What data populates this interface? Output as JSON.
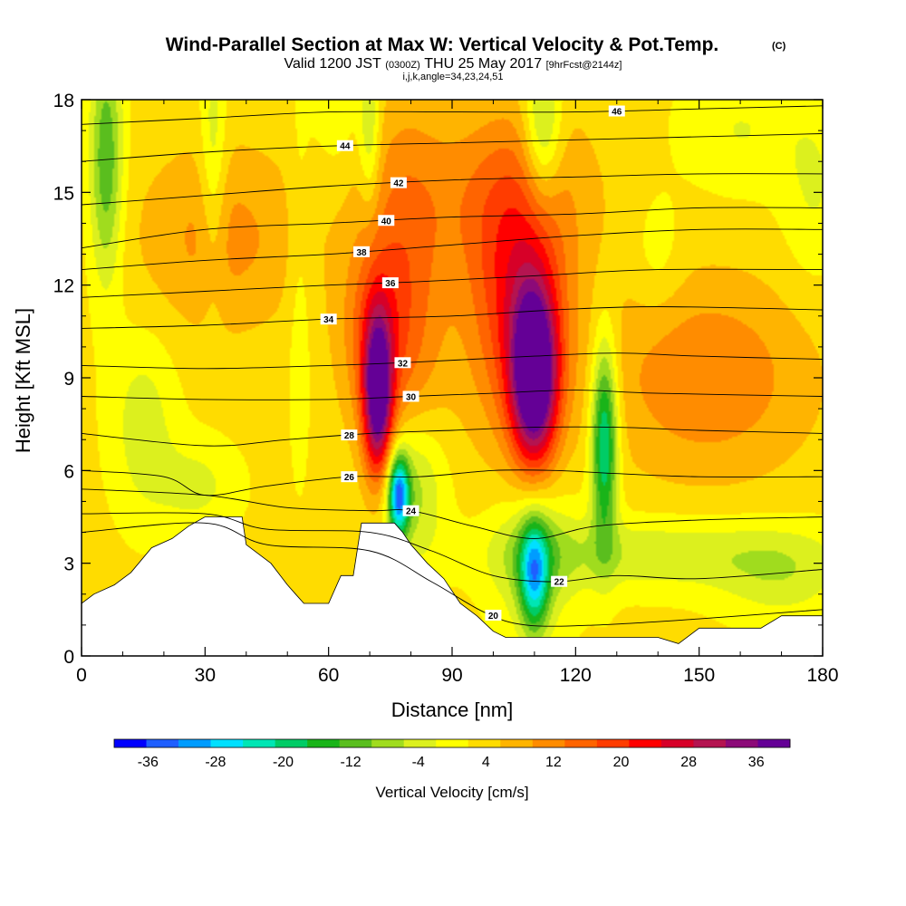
{
  "chart_data": {
    "type": "heatmap",
    "title": "Wind-Parallel Section at Max W: Vertical Velocity & Pot.Temp.",
    "title_mark": "(C)",
    "subtitle_valid": "Valid 1200 JST",
    "subtitle_utc": "(0300Z)",
    "subtitle_date": "THU 25 May 2017",
    "subtitle_fcst": "[9hrFcst@2144z]",
    "subtitle_indices": "i,j,k,angle=34,23,24,51",
    "xlabel": "Distance [nm]",
    "ylabel": "Height [Kft MSL]",
    "xlim": [
      0,
      180
    ],
    "ylim": [
      0,
      18
    ],
    "xticks": [
      "0",
      "30",
      "60",
      "90",
      "120",
      "150",
      "180"
    ],
    "yticks": [
      "0",
      "3",
      "6",
      "9",
      "12",
      "15",
      "18"
    ],
    "colorbar": {
      "title": "Vertical Velocity [cm/s]",
      "labels": [
        "-36",
        "-28",
        "-20",
        "-12",
        "-4",
        "4",
        "12",
        "20",
        "28",
        "36"
      ],
      "range": [
        -40,
        40
      ],
      "colors": [
        "#0000ff",
        "#1f5fff",
        "#009cff",
        "#00e0ff",
        "#00e6b4",
        "#00cc66",
        "#19b419",
        "#5abe1e",
        "#a0dc1e",
        "#dcf01e",
        "#ffff00",
        "#ffdc00",
        "#ffb400",
        "#ff8c00",
        "#ff6400",
        "#ff3c00",
        "#ff0000",
        "#d70028",
        "#b41450",
        "#8c0a78",
        "#640096"
      ]
    },
    "background_w": 3,
    "updraft_cores": [
      {
        "x": 72,
        "z": 8.4,
        "w": 36,
        "rx": 3.5,
        "rz": 2.6
      },
      {
        "x": 110,
        "z": 9.0,
        "w": 40,
        "rx": 5.5,
        "rz": 2.8
      },
      {
        "x": 106,
        "z": 11.5,
        "w": 18,
        "rx": 12,
        "rz": 4.5
      },
      {
        "x": 78,
        "z": 11.0,
        "w": 12,
        "rx": 10,
        "rz": 6
      },
      {
        "x": 152,
        "z": 9.0,
        "w": 10,
        "rx": 25,
        "rz": 3.2
      },
      {
        "x": 34,
        "z": 13.5,
        "w": 8,
        "rx": 20,
        "rz": 3
      },
      {
        "x": 100,
        "z": 15.0,
        "w": 7,
        "rx": 25,
        "rz": 3
      },
      {
        "x": 70,
        "z": 10.5,
        "w": 8,
        "rx": 8,
        "rz": 3
      }
    ],
    "downdraft_cores": [
      {
        "x": 77,
        "z": 5.2,
        "w": -32,
        "rx": 2.5,
        "rz": 1.3
      },
      {
        "x": 80,
        "z": 5.5,
        "w": -14,
        "rx": 8,
        "rz": 2.5
      },
      {
        "x": 127,
        "z": 7.0,
        "w": -26,
        "rx": 3.2,
        "rz": 3.2
      },
      {
        "x": 110,
        "z": 2.6,
        "w": -24,
        "rx": 3.5,
        "rz": 1.8
      },
      {
        "x": 110,
        "z": 3.2,
        "w": -10,
        "rx": 10,
        "rz": 2.5
      },
      {
        "x": 6,
        "z": 16.0,
        "w": -16,
        "rx": 4,
        "rz": 4
      },
      {
        "x": 112,
        "z": 17.0,
        "w": -14,
        "rx": 4.5,
        "rz": 2.5
      },
      {
        "x": 32,
        "z": 16.0,
        "w": -8,
        "rx": 3,
        "rz": 4
      },
      {
        "x": 70,
        "z": 17.0,
        "w": -10,
        "rx": 2.5,
        "rz": 2.5
      },
      {
        "x": 15,
        "z": 7.5,
        "w": -7,
        "rx": 8,
        "rz": 3
      },
      {
        "x": 28,
        "z": 5.5,
        "w": -6,
        "rx": 10,
        "rz": 1.5
      },
      {
        "x": 140,
        "z": 3.3,
        "w": -8,
        "rx": 40,
        "rz": 1.2
      },
      {
        "x": 170,
        "z": 2.5,
        "w": -6,
        "rx": 15,
        "rz": 1.5
      },
      {
        "x": 178,
        "z": 15.0,
        "w": -5,
        "rx": 8,
        "rz": 3
      },
      {
        "x": 160,
        "z": 17.0,
        "w": -5,
        "rx": 15,
        "rz": 2
      },
      {
        "x": 53,
        "z": 12.0,
        "w": -4,
        "rx": 3,
        "rz": 6
      },
      {
        "x": 62,
        "z": 17.5,
        "w": -4,
        "rx": 6,
        "rz": 2
      },
      {
        "x": 140,
        "z": 13.0,
        "w": -4,
        "rx": 6,
        "rz": 2
      }
    ],
    "terrain": [
      {
        "x": 0,
        "z": 1.7
      },
      {
        "x": 3,
        "z": 2.0
      },
      {
        "x": 8,
        "z": 2.3
      },
      {
        "x": 12,
        "z": 2.7
      },
      {
        "x": 17,
        "z": 3.5
      },
      {
        "x": 22,
        "z": 3.8
      },
      {
        "x": 26,
        "z": 4.2
      },
      {
        "x": 30,
        "z": 4.5
      },
      {
        "x": 39,
        "z": 4.5
      },
      {
        "x": 40,
        "z": 3.6
      },
      {
        "x": 46,
        "z": 3.0
      },
      {
        "x": 50,
        "z": 2.3
      },
      {
        "x": 52,
        "z": 2.0
      },
      {
        "x": 54,
        "z": 1.7
      },
      {
        "x": 60,
        "z": 1.7
      },
      {
        "x": 63,
        "z": 2.6
      },
      {
        "x": 66,
        "z": 2.6
      },
      {
        "x": 68,
        "z": 4.3
      },
      {
        "x": 76,
        "z": 4.3
      },
      {
        "x": 78,
        "z": 4.0
      },
      {
        "x": 80,
        "z": 3.6
      },
      {
        "x": 84,
        "z": 3.0
      },
      {
        "x": 88,
        "z": 2.5
      },
      {
        "x": 92,
        "z": 1.7
      },
      {
        "x": 96,
        "z": 1.3
      },
      {
        "x": 100,
        "z": 0.8
      },
      {
        "x": 103,
        "z": 0.6
      },
      {
        "x": 110,
        "z": 0.6
      },
      {
        "x": 130,
        "z": 0.6
      },
      {
        "x": 140,
        "z": 0.6
      },
      {
        "x": 145,
        "z": 0.4
      },
      {
        "x": 150,
        "z": 0.9
      },
      {
        "x": 155,
        "z": 0.9
      },
      {
        "x": 165,
        "z": 0.9
      },
      {
        "x": 170,
        "z": 1.3
      },
      {
        "x": 180,
        "z": 1.3
      }
    ],
    "isentropes": [
      {
        "value": 20,
        "labeled": true,
        "points": [
          [
            0,
            4.0
          ],
          [
            30,
            4.3
          ],
          [
            45,
            3.6
          ],
          [
            70,
            3.4
          ],
          [
            85,
            2.4
          ],
          [
            98,
            1.4
          ],
          [
            108,
            1.0
          ],
          [
            125,
            1.0
          ],
          [
            150,
            1.2
          ],
          [
            180,
            1.5
          ]
        ],
        "label_x": 100
      },
      {
        "value": 22,
        "labeled": true,
        "points": [
          [
            0,
            4.6
          ],
          [
            30,
            4.6
          ],
          [
            45,
            4.1
          ],
          [
            70,
            4.0
          ],
          [
            85,
            3.4
          ],
          [
            100,
            2.6
          ],
          [
            115,
            2.4
          ],
          [
            130,
            2.6
          ],
          [
            150,
            2.5
          ],
          [
            180,
            2.8
          ]
        ],
        "label_x": 116
      },
      {
        "value": 24,
        "labeled": true,
        "points": [
          [
            0,
            5.4
          ],
          [
            30,
            5.2
          ],
          [
            50,
            4.8
          ],
          [
            70,
            4.7
          ],
          [
            80,
            4.7
          ],
          [
            95,
            4.2
          ],
          [
            110,
            3.8
          ],
          [
            125,
            4.2
          ],
          [
            150,
            4.4
          ],
          [
            180,
            4.5
          ]
        ],
        "label_x": 80
      },
      {
        "value": 26,
        "labeled": true,
        "points": [
          [
            0,
            6.0
          ],
          [
            20,
            5.8
          ],
          [
            30,
            5.2
          ],
          [
            45,
            5.5
          ],
          [
            65,
            5.8
          ],
          [
            82,
            5.8
          ],
          [
            100,
            6.0
          ],
          [
            115,
            6.0
          ],
          [
            130,
            5.9
          ],
          [
            150,
            5.8
          ],
          [
            180,
            5.8
          ]
        ],
        "label_x": 65
      },
      {
        "value": 28,
        "labeled": true,
        "points": [
          [
            0,
            7.2
          ],
          [
            30,
            6.8
          ],
          [
            50,
            7.0
          ],
          [
            70,
            7.2
          ],
          [
            90,
            7.3
          ],
          [
            110,
            7.4
          ],
          [
            130,
            7.4
          ],
          [
            150,
            7.3
          ],
          [
            180,
            7.2
          ]
        ],
        "label_x": 65
      },
      {
        "value": 30,
        "labeled": true,
        "points": [
          [
            0,
            8.4
          ],
          [
            30,
            8.3
          ],
          [
            60,
            8.3
          ],
          [
            80,
            8.4
          ],
          [
            100,
            8.5
          ],
          [
            120,
            8.6
          ],
          [
            140,
            8.5
          ],
          [
            180,
            8.4
          ]
        ],
        "label_x": 80
      },
      {
        "value": 32,
        "labeled": true,
        "points": [
          [
            0,
            9.4
          ],
          [
            30,
            9.3
          ],
          [
            60,
            9.4
          ],
          [
            80,
            9.5
          ],
          [
            110,
            9.7
          ],
          [
            130,
            9.8
          ],
          [
            150,
            9.7
          ],
          [
            180,
            9.6
          ]
        ],
        "label_x": 78
      },
      {
        "value": 34,
        "labeled": true,
        "points": [
          [
            0,
            10.6
          ],
          [
            30,
            10.7
          ],
          [
            60,
            10.9
          ],
          [
            90,
            11.0
          ],
          [
            115,
            11.2
          ],
          [
            140,
            11.3
          ],
          [
            180,
            11.2
          ]
        ],
        "label_x": 60
      },
      {
        "value": 36,
        "labeled": true,
        "points": [
          [
            0,
            11.6
          ],
          [
            30,
            11.8
          ],
          [
            60,
            12.0
          ],
          [
            80,
            12.1
          ],
          [
            110,
            12.3
          ],
          [
            140,
            12.5
          ],
          [
            180,
            12.5
          ]
        ],
        "label_x": 75
      },
      {
        "value": 38,
        "labeled": true,
        "points": [
          [
            0,
            12.5
          ],
          [
            30,
            12.8
          ],
          [
            60,
            13.0
          ],
          [
            90,
            13.3
          ],
          [
            120,
            13.6
          ],
          [
            150,
            13.8
          ],
          [
            180,
            13.8
          ]
        ],
        "label_x": 68
      },
      {
        "value": 40,
        "labeled": true,
        "points": [
          [
            0,
            13.2
          ],
          [
            30,
            13.8
          ],
          [
            60,
            14.0
          ],
          [
            90,
            14.2
          ],
          [
            120,
            14.3
          ],
          [
            150,
            14.5
          ],
          [
            180,
            14.5
          ]
        ],
        "label_x": 74
      },
      {
        "value": 42,
        "labeled": true,
        "points": [
          [
            0,
            14.6
          ],
          [
            30,
            14.9
          ],
          [
            60,
            15.2
          ],
          [
            90,
            15.4
          ],
          [
            120,
            15.5
          ],
          [
            150,
            15.6
          ],
          [
            180,
            15.6
          ]
        ],
        "label_x": 77
      },
      {
        "value": 44,
        "labeled": true,
        "points": [
          [
            0,
            16.0
          ],
          [
            30,
            16.3
          ],
          [
            60,
            16.5
          ],
          [
            90,
            16.6
          ],
          [
            120,
            16.7
          ],
          [
            150,
            16.8
          ],
          [
            180,
            16.9
          ]
        ],
        "label_x": 64
      },
      {
        "value": 46,
        "labeled": true,
        "points": [
          [
            0,
            17.2
          ],
          [
            30,
            17.4
          ],
          [
            60,
            17.6
          ],
          [
            90,
            17.6
          ],
          [
            120,
            17.6
          ],
          [
            150,
            17.7
          ],
          [
            180,
            17.8
          ]
        ],
        "label_x": 130
      }
    ]
  }
}
